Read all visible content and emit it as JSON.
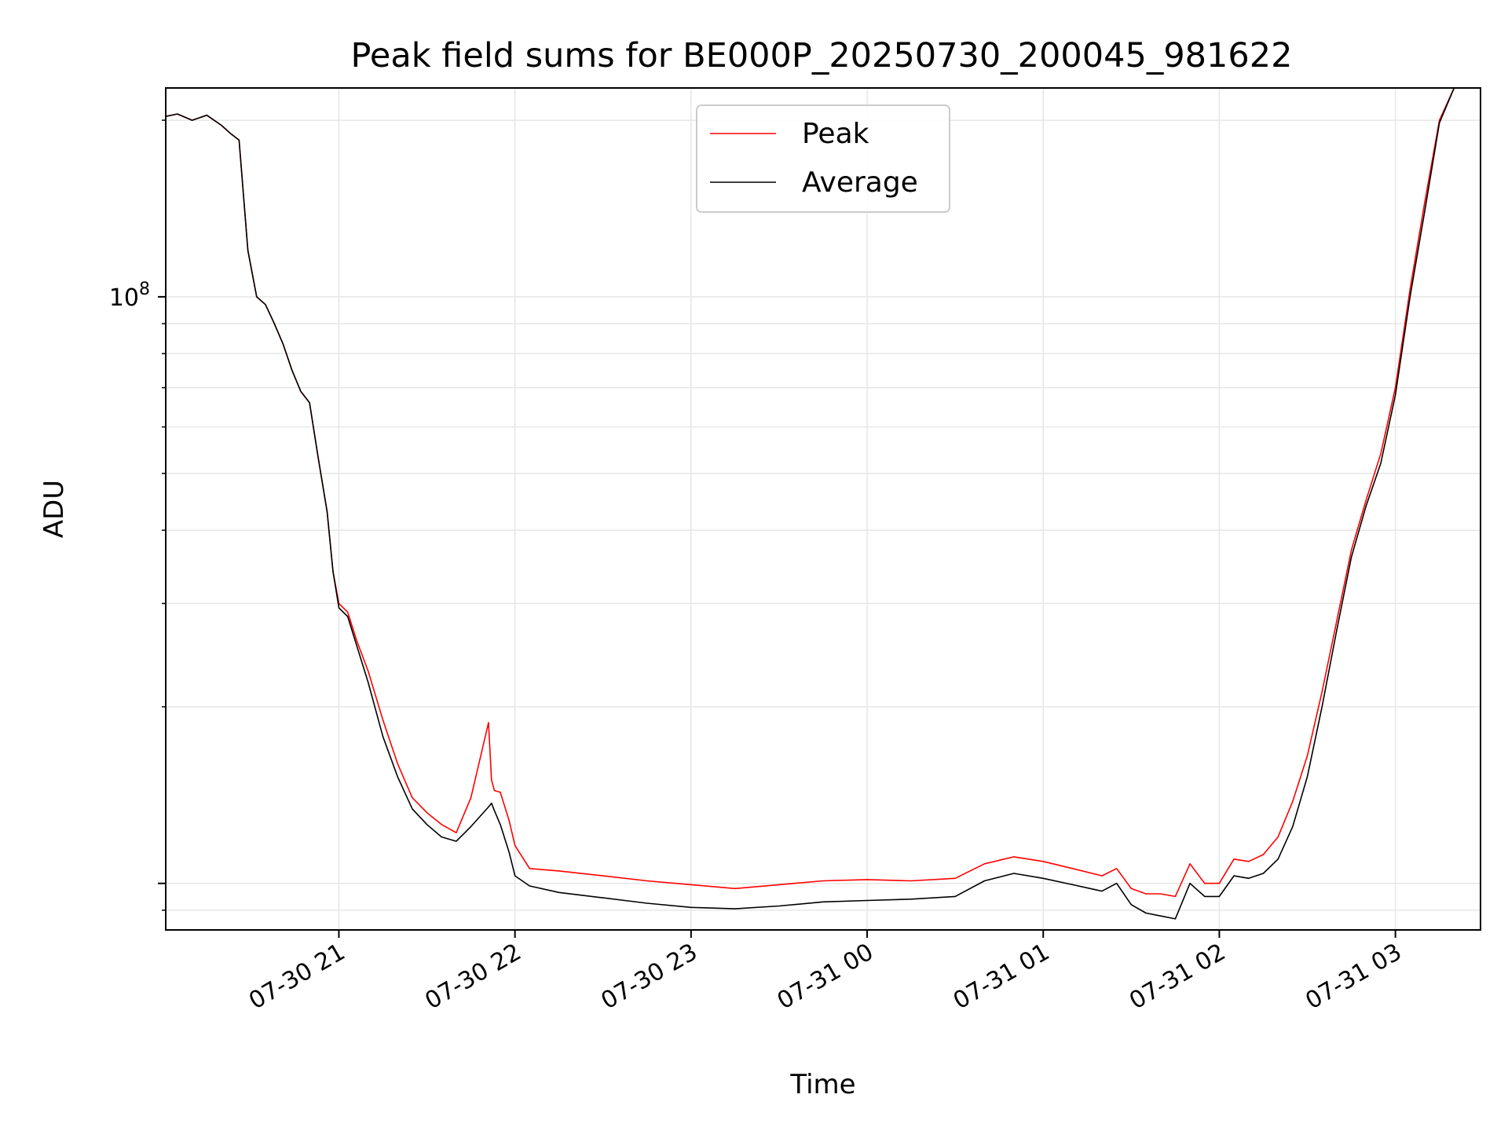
{
  "chart_data": {
    "type": "line",
    "title": "Peak field sums for BE000P_20250730_200045_981622",
    "xlabel": "Time",
    "ylabel": "ADU",
    "yscale": "log",
    "grid": true,
    "legend_position": "top-center",
    "x_range": [
      "2025-07-30 20:01",
      "2025-07-31 03:29"
    ],
    "ylim": [
      8330000,
      227000000
    ],
    "x_ticks": [
      {
        "t": "2025-07-30 21:00",
        "label": "07-30 21"
      },
      {
        "t": "2025-07-30 22:00",
        "label": "07-30 22"
      },
      {
        "t": "2025-07-30 23:00",
        "label": "07-30 23"
      },
      {
        "t": "2025-07-31 00:00",
        "label": "07-31 00"
      },
      {
        "t": "2025-07-31 01:00",
        "label": "07-31 01"
      },
      {
        "t": "2025-07-31 02:00",
        "label": "07-31 02"
      },
      {
        "t": "2025-07-31 03:00",
        "label": "07-31 03"
      }
    ],
    "y_ticks": [
      {
        "value": 100000000,
        "base": "10",
        "exp": "8"
      }
    ],
    "series": [
      {
        "name": "Peak",
        "color": "#ff0000",
        "x": [
          "2025-07-30 20:01",
          "2025-07-30 20:05",
          "2025-07-30 20:10",
          "2025-07-30 20:15",
          "2025-07-30 20:20",
          "2025-07-30 20:23",
          "2025-07-30 20:26",
          "2025-07-30 20:29",
          "2025-07-30 20:32",
          "2025-07-30 20:35",
          "2025-07-30 20:38",
          "2025-07-30 20:41",
          "2025-07-30 20:44",
          "2025-07-30 20:47",
          "2025-07-30 20:50",
          "2025-07-30 20:53",
          "2025-07-30 20:56",
          "2025-07-30 20:58",
          "2025-07-30 21:00",
          "2025-07-30 21:03",
          "2025-07-30 21:06",
          "2025-07-30 21:10",
          "2025-07-30 21:15",
          "2025-07-30 21:20",
          "2025-07-30 21:25",
          "2025-07-30 21:30",
          "2025-07-30 21:35",
          "2025-07-30 21:40",
          "2025-07-30 21:45",
          "2025-07-30 21:51",
          "2025-07-30 21:52",
          "2025-07-30 21:53",
          "2025-07-30 21:55",
          "2025-07-30 21:58",
          "2025-07-30 22:00",
          "2025-07-30 22:05",
          "2025-07-30 22:15",
          "2025-07-30 22:30",
          "2025-07-30 22:45",
          "2025-07-30 23:00",
          "2025-07-30 23:15",
          "2025-07-30 23:30",
          "2025-07-30 23:45",
          "2025-07-31 00:00",
          "2025-07-31 00:15",
          "2025-07-31 00:30",
          "2025-07-31 00:40",
          "2025-07-31 00:50",
          "2025-07-31 01:00",
          "2025-07-31 01:10",
          "2025-07-31 01:20",
          "2025-07-31 01:25",
          "2025-07-31 01:30",
          "2025-07-31 01:35",
          "2025-07-31 01:40",
          "2025-07-31 01:45",
          "2025-07-31 01:50",
          "2025-07-31 01:55",
          "2025-07-31 02:00",
          "2025-07-31 02:05",
          "2025-07-31 02:10",
          "2025-07-31 02:15",
          "2025-07-31 02:20",
          "2025-07-31 02:25",
          "2025-07-31 02:30",
          "2025-07-31 02:35",
          "2025-07-31 02:40",
          "2025-07-31 02:45",
          "2025-07-31 02:50",
          "2025-07-31 02:55",
          "2025-07-31 03:00",
          "2025-07-31 03:05",
          "2025-07-31 03:10",
          "2025-07-31 03:15",
          "2025-07-31 03:20",
          "2025-07-31 03:29"
        ],
        "values": [
          203000000,
          205000000,
          200000000,
          204000000,
          196000000,
          190000000,
          185000000,
          120000000,
          100000000,
          97000000,
          90000000,
          83000000,
          75000000,
          69000000,
          66000000,
          53000000,
          43000000,
          34000000,
          30000000,
          29000000,
          26000000,
          23000000,
          19000000,
          16000000,
          14000000,
          13200000,
          12600000,
          12200000,
          14000000,
          18800000,
          15000000,
          14400000,
          14300000,
          12800000,
          11600000,
          10600000,
          10500000,
          10300000,
          10100000,
          9950000,
          9800000,
          9950000,
          10100000,
          10150000,
          10100000,
          10200000,
          10800000,
          11100000,
          10900000,
          10600000,
          10300000,
          10600000,
          9800000,
          9600000,
          9600000,
          9500000,
          10800000,
          10000000,
          10000000,
          11000000,
          10900000,
          11200000,
          12000000,
          13800000,
          16500000,
          21200000,
          28000000,
          37000000,
          45000000,
          54000000,
          70000000,
          103000000,
          145000000,
          200000000,
          227000000,
          227000000
        ]
      },
      {
        "name": "Average",
        "color": "#000000",
        "x": [
          "2025-07-30 20:01",
          "2025-07-30 20:05",
          "2025-07-30 20:10",
          "2025-07-30 20:15",
          "2025-07-30 20:20",
          "2025-07-30 20:23",
          "2025-07-30 20:26",
          "2025-07-30 20:29",
          "2025-07-30 20:32",
          "2025-07-30 20:35",
          "2025-07-30 20:38",
          "2025-07-30 20:41",
          "2025-07-30 20:44",
          "2025-07-30 20:47",
          "2025-07-30 20:50",
          "2025-07-30 20:53",
          "2025-07-30 20:56",
          "2025-07-30 20:58",
          "2025-07-30 21:00",
          "2025-07-30 21:03",
          "2025-07-30 21:06",
          "2025-07-30 21:10",
          "2025-07-30 21:15",
          "2025-07-30 21:20",
          "2025-07-30 21:25",
          "2025-07-30 21:30",
          "2025-07-30 21:35",
          "2025-07-30 21:40",
          "2025-07-30 21:45",
          "2025-07-30 21:51",
          "2025-07-30 21:52",
          "2025-07-30 21:53",
          "2025-07-30 21:55",
          "2025-07-30 21:58",
          "2025-07-30 22:00",
          "2025-07-30 22:05",
          "2025-07-30 22:15",
          "2025-07-30 22:30",
          "2025-07-30 22:45",
          "2025-07-30 23:00",
          "2025-07-30 23:15",
          "2025-07-30 23:30",
          "2025-07-30 23:45",
          "2025-07-31 00:00",
          "2025-07-31 00:15",
          "2025-07-31 00:30",
          "2025-07-31 00:40",
          "2025-07-31 00:50",
          "2025-07-31 01:00",
          "2025-07-31 01:10",
          "2025-07-31 01:20",
          "2025-07-31 01:25",
          "2025-07-31 01:30",
          "2025-07-31 01:35",
          "2025-07-31 01:40",
          "2025-07-31 01:45",
          "2025-07-31 01:50",
          "2025-07-31 01:55",
          "2025-07-31 02:00",
          "2025-07-31 02:05",
          "2025-07-31 02:10",
          "2025-07-31 02:15",
          "2025-07-31 02:20",
          "2025-07-31 02:25",
          "2025-07-31 02:30",
          "2025-07-31 02:35",
          "2025-07-31 02:40",
          "2025-07-31 02:45",
          "2025-07-31 02:50",
          "2025-07-31 02:55",
          "2025-07-31 03:00",
          "2025-07-31 03:05",
          "2025-07-31 03:10",
          "2025-07-31 03:15",
          "2025-07-31 03:20",
          "2025-07-31 03:29"
        ],
        "values": [
          203000000,
          205000000,
          200000000,
          204000000,
          196000000,
          190000000,
          185000000,
          120000000,
          100000000,
          97000000,
          90000000,
          83000000,
          75000000,
          69000000,
          66000000,
          53000000,
          43000000,
          34000000,
          29500000,
          28500000,
          25500000,
          22000000,
          17800000,
          15200000,
          13400000,
          12600000,
          12000000,
          11800000,
          12500000,
          13500000,
          13700000,
          13300000,
          12600000,
          11300000,
          10300000,
          9900000,
          9650000,
          9450000,
          9250000,
          9100000,
          9050000,
          9150000,
          9300000,
          9350000,
          9400000,
          9500000,
          10100000,
          10400000,
          10200000,
          9950000,
          9700000,
          10000000,
          9200000,
          8900000,
          8800000,
          8700000,
          10000000,
          9500000,
          9500000,
          10300000,
          10200000,
          10400000,
          11000000,
          12500000,
          15200000,
          20000000,
          27000000,
          36000000,
          44000000,
          52000000,
          68000000,
          100000000,
          140000000,
          198000000,
          227000000,
          227000000
        ]
      }
    ]
  }
}
